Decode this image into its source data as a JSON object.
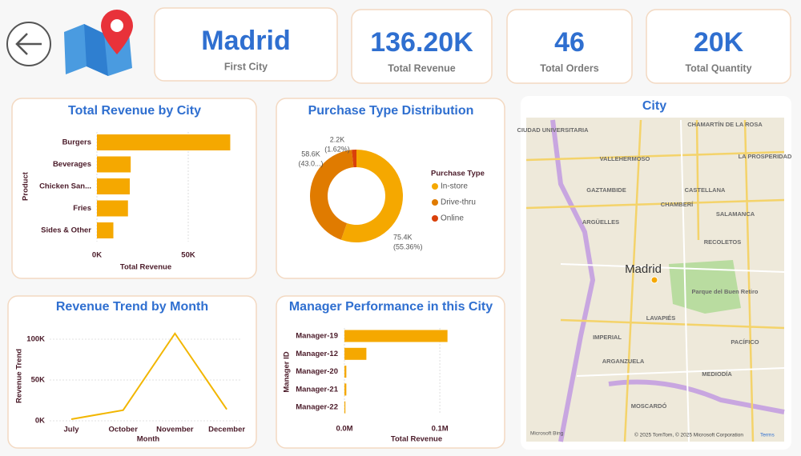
{
  "cards": [
    {
      "value": "Madrid",
      "label": "First City"
    },
    {
      "value": "136.20K",
      "label": "Total Revenue"
    },
    {
      "value": "46",
      "label": "Total Orders"
    },
    {
      "value": "20K",
      "label": "Total Quantity"
    }
  ],
  "chart_data": [
    {
      "type": "bar",
      "horizontal": true,
      "title": "Total Revenue by City",
      "categories": [
        "Burgers",
        "Beverages",
        "Chicken San...",
        "Fries",
        "Sides & Other"
      ],
      "values": [
        73000,
        18500,
        18000,
        17000,
        9000
      ],
      "color": "#f5a800",
      "xlim": [
        0,
        75000
      ],
      "xticks": [
        {
          "value": 0,
          "label": "0K"
        },
        {
          "value": 50000,
          "label": "50K"
        }
      ],
      "xlabel": "Total Revenue",
      "ylabel": "Product",
      "grid": true
    },
    {
      "type": "donut",
      "title": "Purchase Type Distribution",
      "categories": [
        "In-store",
        "Drive-thru",
        "Online"
      ],
      "values": [
        75400,
        58600,
        2200
      ],
      "value_labels": [
        "75.4K",
        "58.6K",
        "2.2K"
      ],
      "percent_labels": [
        "(55.36%)",
        "(43.0...)",
        "(1.62%)"
      ],
      "colors": [
        "#f5a800",
        "#e07b00",
        "#d9400a"
      ],
      "legend_title": "Purchase Type",
      "legend": "right"
    },
    {
      "type": "line",
      "title": "Revenue Trend by Month",
      "categories": [
        "July",
        "October",
        "November",
        "December"
      ],
      "values": [
        2000,
        13000,
        107000,
        14000
      ],
      "color": "#f2b600",
      "ylim": [
        0,
        115000
      ],
      "yticks": [
        {
          "value": 0,
          "label": "0K"
        },
        {
          "value": 50000,
          "label": "50K"
        },
        {
          "value": 100000,
          "label": "100K"
        }
      ],
      "xlabel": "Month",
      "ylabel": "Revenue Trend",
      "grid": true
    },
    {
      "type": "bar",
      "horizontal": true,
      "title": "Manager Performance in this City",
      "categories": [
        "Manager-19",
        "Manager-12",
        "Manager-20",
        "Manager-21",
        "Manager-22"
      ],
      "values": [
        108000,
        23000,
        2000,
        2000,
        1000
      ],
      "color": "#f5a800",
      "xlim": [
        0,
        115000
      ],
      "xticks": [
        {
          "value": 0,
          "label": "0.0M"
        },
        {
          "value": 100000,
          "label": "0.1M"
        }
      ],
      "xlabel": "Total Revenue",
      "ylabel": "Manager ID",
      "grid": true
    }
  ],
  "map": {
    "title": "City",
    "city": "Madrid",
    "labels": [
      "CIUDAD UNIVERSITARIA",
      "CHAMARTÍN DE LA ROSA",
      "LA PROSPERIDAD",
      "VALLEHERMOSO",
      "GAZTAMBIDE",
      "CASTELLANA",
      "CHAMBERÍ",
      "SALAMANCA",
      "ARGÜELLES",
      "RECOLETOS",
      "LAVAPIÉS",
      "IMPERIAL",
      "ARGANZUELA",
      "PACÍFICO",
      "MEDIODÍA",
      "MOSCARDÓ"
    ],
    "park": "Parque del Buen Retiro",
    "logo": "Microsoft Bing",
    "attribution": "© 2025 TomTom, © 2025 Microsoft Corporation",
    "terms": "Terms"
  }
}
